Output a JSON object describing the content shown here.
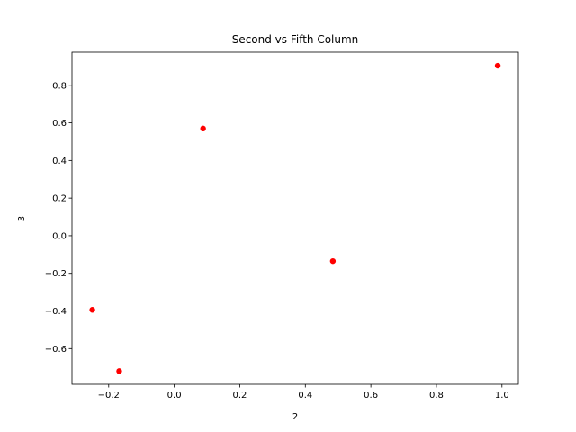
{
  "chart_data": {
    "type": "scatter",
    "title": "Second vs Fifth Column",
    "xlabel": "2",
    "ylabel": "3",
    "xlim": [
      -0.312,
      1.05
    ],
    "ylim": [
      -0.79,
      0.976
    ],
    "xticks": [
      -0.2,
      0.0,
      0.2,
      0.4,
      0.6,
      0.8,
      1.0
    ],
    "xtick_labels": [
      "−0.2",
      "0.0",
      "0.2",
      "0.4",
      "0.6",
      "0.8",
      "1.0"
    ],
    "yticks": [
      -0.6,
      -0.4,
      -0.2,
      0.0,
      0.2,
      0.4,
      0.6,
      0.8
    ],
    "ytick_labels": [
      "−0.6",
      "−0.4",
      "−0.2",
      "0.0",
      "0.2",
      "0.4",
      "0.6",
      "0.8"
    ],
    "grid": false,
    "legend": "none",
    "marker_color": "#ff0000",
    "points": [
      {
        "x": 0.088,
        "y": 0.57
      },
      {
        "x": 0.987,
        "y": 0.904
      },
      {
        "x": 0.484,
        "y": -0.135
      },
      {
        "x": -0.25,
        "y": -0.394
      },
      {
        "x": -0.168,
        "y": -0.72
      }
    ]
  }
}
